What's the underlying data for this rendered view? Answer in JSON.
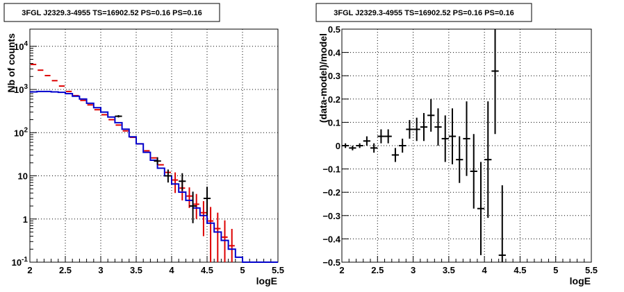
{
  "colors": {
    "data": "#000000",
    "model": "#0000cc",
    "alt": "#dd0000",
    "grid": "#000000"
  },
  "chart_data": [
    {
      "type": "line",
      "title": "3FGL J2329.3-4955 TS=16902.52 PS=0.16 PS=0.16",
      "xlabel": "logE",
      "ylabel": "Nb of counts",
      "yscale": "log",
      "xlim": [
        2,
        5.5
      ],
      "ylim": [
        0.1,
        25000
      ],
      "grid": true,
      "x_ticks": [
        "2",
        "2.5",
        "3",
        "3.5",
        "4",
        "4.5",
        "5",
        "5.5"
      ],
      "y_ticks": [
        "10^-1",
        "1",
        "10",
        "10^2",
        "10^3",
        "10^4"
      ],
      "bin_edges": [
        2.0,
        2.1,
        2.2,
        2.3,
        2.4,
        2.5,
        2.6,
        2.7,
        2.8,
        2.9,
        3.0,
        3.1,
        3.2,
        3.3,
        3.4,
        3.5,
        3.6,
        3.7,
        3.8,
        3.9,
        4.0,
        4.1,
        4.2,
        4.3,
        4.4,
        4.5,
        4.6,
        4.7,
        4.8,
        4.9,
        5.0,
        5.1,
        5.2,
        5.3,
        5.4,
        5.5
      ],
      "series": [
        {
          "role": "model-blue",
          "values": [
            880,
            900,
            900,
            880,
            860,
            800,
            700,
            600,
            480,
            380,
            300,
            230,
            170,
            120,
            80,
            55,
            35,
            23,
            15,
            10,
            6.5,
            4.2,
            2.7,
            1.8,
            1.2,
            0.8,
            0.5,
            0.32,
            0.2,
            0.13,
            0.1,
            0.1,
            0.1,
            0.1,
            0.1
          ]
        },
        {
          "role": "model-red",
          "values": [
            3800,
            2800,
            2100,
            1600,
            1200,
            900,
            720,
            560,
            440,
            340,
            260,
            200,
            150,
            110,
            78,
            55,
            38,
            26,
            18,
            12,
            8,
            5.2,
            3.4,
            2.2,
            1.4,
            0.9,
            0.6,
            0.38,
            0.24,
            null,
            null,
            null,
            null,
            null,
            null
          ],
          "err_low": [
            0,
            0,
            0,
            0,
            0,
            0,
            0,
            0,
            0,
            0,
            0,
            0,
            0,
            0,
            0,
            0,
            0,
            0,
            0,
            0,
            4,
            2.5,
            1.6,
            1.2,
            1.0,
            0.8,
            0.55,
            0.36,
            0.23,
            null,
            null,
            null,
            null,
            null,
            null
          ],
          "err_high": [
            0,
            0,
            0,
            0,
            0,
            0,
            0,
            0,
            0,
            0,
            0,
            0,
            0,
            0,
            0,
            0,
            0,
            0,
            0,
            0,
            4,
            3.0,
            2.0,
            1.6,
            1.2,
            1.0,
            0.8,
            0.55,
            0.35,
            null,
            null,
            null,
            null,
            null,
            null
          ]
        },
        {
          "role": "data",
          "x": [
            3.25,
            3.8,
            3.95,
            4.15,
            4.3,
            4.5
          ],
          "y": [
            240,
            22,
            10,
            7.5,
            2,
            3
          ],
          "err_low": [
            15,
            4,
            3,
            3,
            1.2,
            1.8
          ],
          "err_high": [
            15,
            5,
            4,
            4,
            2.3,
            2.6
          ]
        }
      ]
    },
    {
      "type": "scatter",
      "title": "3FGL J2329.3-4955 TS=16902.52 PS=0.16 PS=0.16",
      "xlabel": "logE",
      "ylabel": "(data-model)/model",
      "xlim": [
        2,
        5.5
      ],
      "ylim": [
        -0.5,
        0.5
      ],
      "grid": true,
      "x_ticks": [
        "2",
        "2.5",
        "3",
        "3.5",
        "4",
        "4.5",
        "5",
        "5.5"
      ],
      "y_ticks": [
        "-0.5",
        "-0.4",
        "-0.3",
        "-0.2",
        "-0.1",
        "0",
        "0.1",
        "0.2",
        "0.3",
        "0.4",
        "0.5"
      ],
      "series": [
        {
          "role": "residuals",
          "x": [
            2.05,
            2.15,
            2.25,
            2.35,
            2.45,
            2.55,
            2.65,
            2.75,
            2.85,
            2.95,
            3.05,
            3.15,
            3.25,
            3.35,
            3.45,
            3.55,
            3.65,
            3.75,
            3.85,
            3.95,
            4.05,
            4.15,
            4.25
          ],
          "y": [
            0.0,
            -0.01,
            0.0,
            0.02,
            -0.01,
            0.04,
            0.04,
            -0.04,
            0.0,
            0.07,
            0.07,
            0.08,
            0.13,
            0.08,
            0.03,
            0.04,
            -0.06,
            0.03,
            -0.11,
            -0.27,
            -0.06,
            0.32,
            -0.47
          ],
          "err": [
            0.01,
            0.01,
            0.01,
            0.02,
            0.02,
            0.03,
            0.03,
            0.03,
            0.03,
            0.04,
            0.05,
            0.06,
            0.07,
            0.08,
            0.1,
            0.12,
            0.1,
            0.16,
            0.16,
            0.2,
            0.25,
            0.27,
            0.3
          ]
        }
      ]
    }
  ]
}
